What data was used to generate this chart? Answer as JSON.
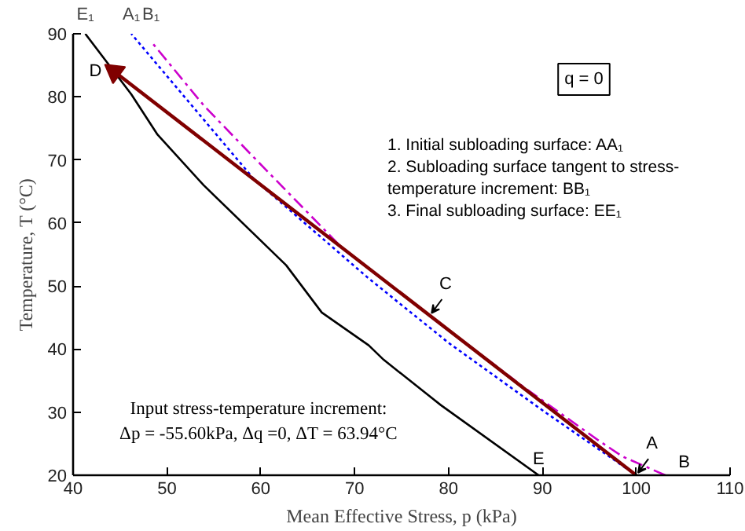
{
  "chart_data": {
    "type": "line",
    "xlabel": "Mean Effective Stress, p (kPa)",
    "ylabel": "Temperature, T (°C)",
    "xlim": [
      40,
      110
    ],
    "ylim": [
      20,
      90
    ],
    "xticks": [
      40,
      50,
      60,
      70,
      80,
      90,
      100,
      110
    ],
    "yticks": [
      20,
      30,
      40,
      50,
      60,
      70,
      80,
      90
    ],
    "grid": false,
    "series": [
      {
        "color": "#000000",
        "line_style": "solid",
        "x": [
          41.3,
          46.2,
          49,
          53.9,
          62.7,
          66.5,
          71.5,
          73.1,
          79.2,
          89.6
        ],
        "values": [
          90,
          80.4,
          74,
          66,
          53.3,
          45.8,
          40.6,
          38.3,
          31.1,
          20
        ]
      },
      {
        "color": "#0000ff",
        "line_style": "dotted",
        "x": [
          100,
          90.1,
          80,
          71.5,
          59.3,
          46.2
        ],
        "values": [
          20,
          30.2,
          41,
          51.2,
          66.9,
          90
        ]
      },
      {
        "color": "#cc00cc",
        "line_style": "dashdot",
        "x": [
          103.1,
          98.5,
          96,
          88,
          78,
          68.7,
          60.5,
          54,
          48.3
        ],
        "values": [
          20,
          23,
          25.5,
          34,
          45.3,
          56,
          68.5,
          78.5,
          88.8
        ]
      },
      {
        "color": "#800000",
        "line_style": "solid",
        "x": [
          100,
          44.4
        ],
        "values": [
          20,
          84
        ]
      }
    ],
    "annotations": [
      {
        "text": "E₁",
        "x": 41.3,
        "y": 90
      },
      {
        "text": "A₁",
        "x": 46.2,
        "y": 90
      },
      {
        "text": "B₁",
        "x": 48.3,
        "y": 88.8
      },
      {
        "text": "D",
        "x": 44.4,
        "y": 84
      },
      {
        "text": "C",
        "x": 78,
        "y": 45.3
      },
      {
        "text": "A",
        "x": 100,
        "y": 20
      },
      {
        "text": "B",
        "x": 103.1,
        "y": 20
      },
      {
        "text": "E",
        "x": 89.6,
        "y": 20
      },
      "q = 0",
      "1. Initial subloading surface: AA₁",
      "2. Subloading surface tangent to stress-temperature increment: BB₁",
      "3. Final subloading surface: EE₁",
      "Input stress-temperature increment:",
      "Δp = -55.60kPa, Δq =0, ΔT = 63.94°C"
    ]
  }
}
